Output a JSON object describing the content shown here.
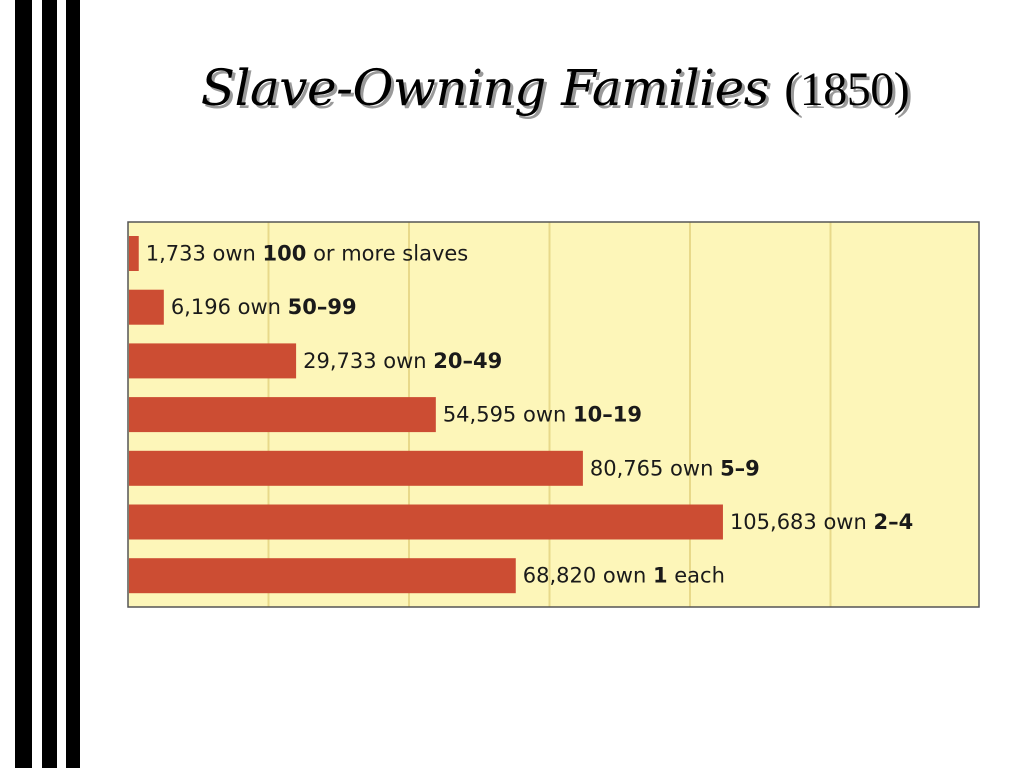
{
  "title": {
    "text": "Slave-Owning Families",
    "year": "(1850)"
  },
  "colors": {
    "plot_background": "#fdf6b9",
    "gridline": "#e8d98a",
    "bar": "#cc4d33",
    "frame": "#555555",
    "stripes": "#000000"
  },
  "chart_data": {
    "type": "bar",
    "orientation": "horizontal",
    "title": "Slave-Owning Families (1850)",
    "categories": [
      "100 or more slaves",
      "50–99",
      "20–49",
      "10–19",
      "5–9",
      "2–4",
      "1 each"
    ],
    "values": [
      1733,
      6196,
      29733,
      54595,
      80765,
      105683,
      68820
    ],
    "labels": [
      {
        "count": "1,733",
        "own": " own ",
        "range": "100",
        "suffix": " or more slaves"
      },
      {
        "count": "6,196",
        "own": " own ",
        "range": "50–99",
        "suffix": ""
      },
      {
        "count": "29,733",
        "own": " own ",
        "range": "20–49",
        "suffix": ""
      },
      {
        "count": "54,595",
        "own": " own ",
        "range": "10–19",
        "suffix": ""
      },
      {
        "count": "80,765",
        "own": " own ",
        "range": "5–9",
        "suffix": ""
      },
      {
        "count": "105,683",
        "own": " own ",
        "range": "2–4",
        "suffix": ""
      },
      {
        "count": "68,820",
        "own": " own ",
        "range": "1",
        "suffix": " each"
      }
    ],
    "xlim": [
      0,
      150000
    ],
    "grid_step": 25000,
    "grid": true,
    "legend": "none"
  }
}
